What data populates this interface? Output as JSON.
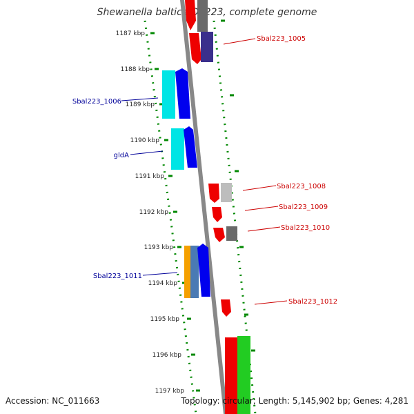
{
  "title": "Shewanella baltica OS223, complete genome",
  "ticks": [
    "1187 kbp",
    "1188 kbp",
    "1189 kbp",
    "1190 kbp",
    "1191 kbp",
    "1192 kbp",
    "1193 kbp",
    "1194 kbp",
    "1195 kbp",
    "1196 kbp",
    "1197 kbp"
  ],
  "labels": {
    "sbal1005": "Sbal223_1005",
    "sbal1006": "Sbal223_1006",
    "glda": "gldA",
    "sbal1008": "Sbal223_1008",
    "sbal1009": "Sbal223_1009",
    "sbal1010": "Sbal223_1010",
    "sbal1011": "Sbal223_1011",
    "sbal1012": "Sbal223_1012"
  },
  "footer": {
    "accession": "Accession: NC_011663",
    "info": "Topology: circular; Length: 5,145,902 bp; Genes: 4,281"
  },
  "colors": {
    "reverse_label": "#cc0000",
    "forward_label": "#000099",
    "backbone": "#888888",
    "tick": "#008800",
    "red": "#ee0000",
    "blue": "#0000ee",
    "cyan": "#00e5e5",
    "navy": "#3a2f8c",
    "gray": "#6a6a6a",
    "light_gray": "#bdbdbd",
    "orange": "#f5a000",
    "steel": "#4a7ab4",
    "green": "#22cc22"
  }
}
